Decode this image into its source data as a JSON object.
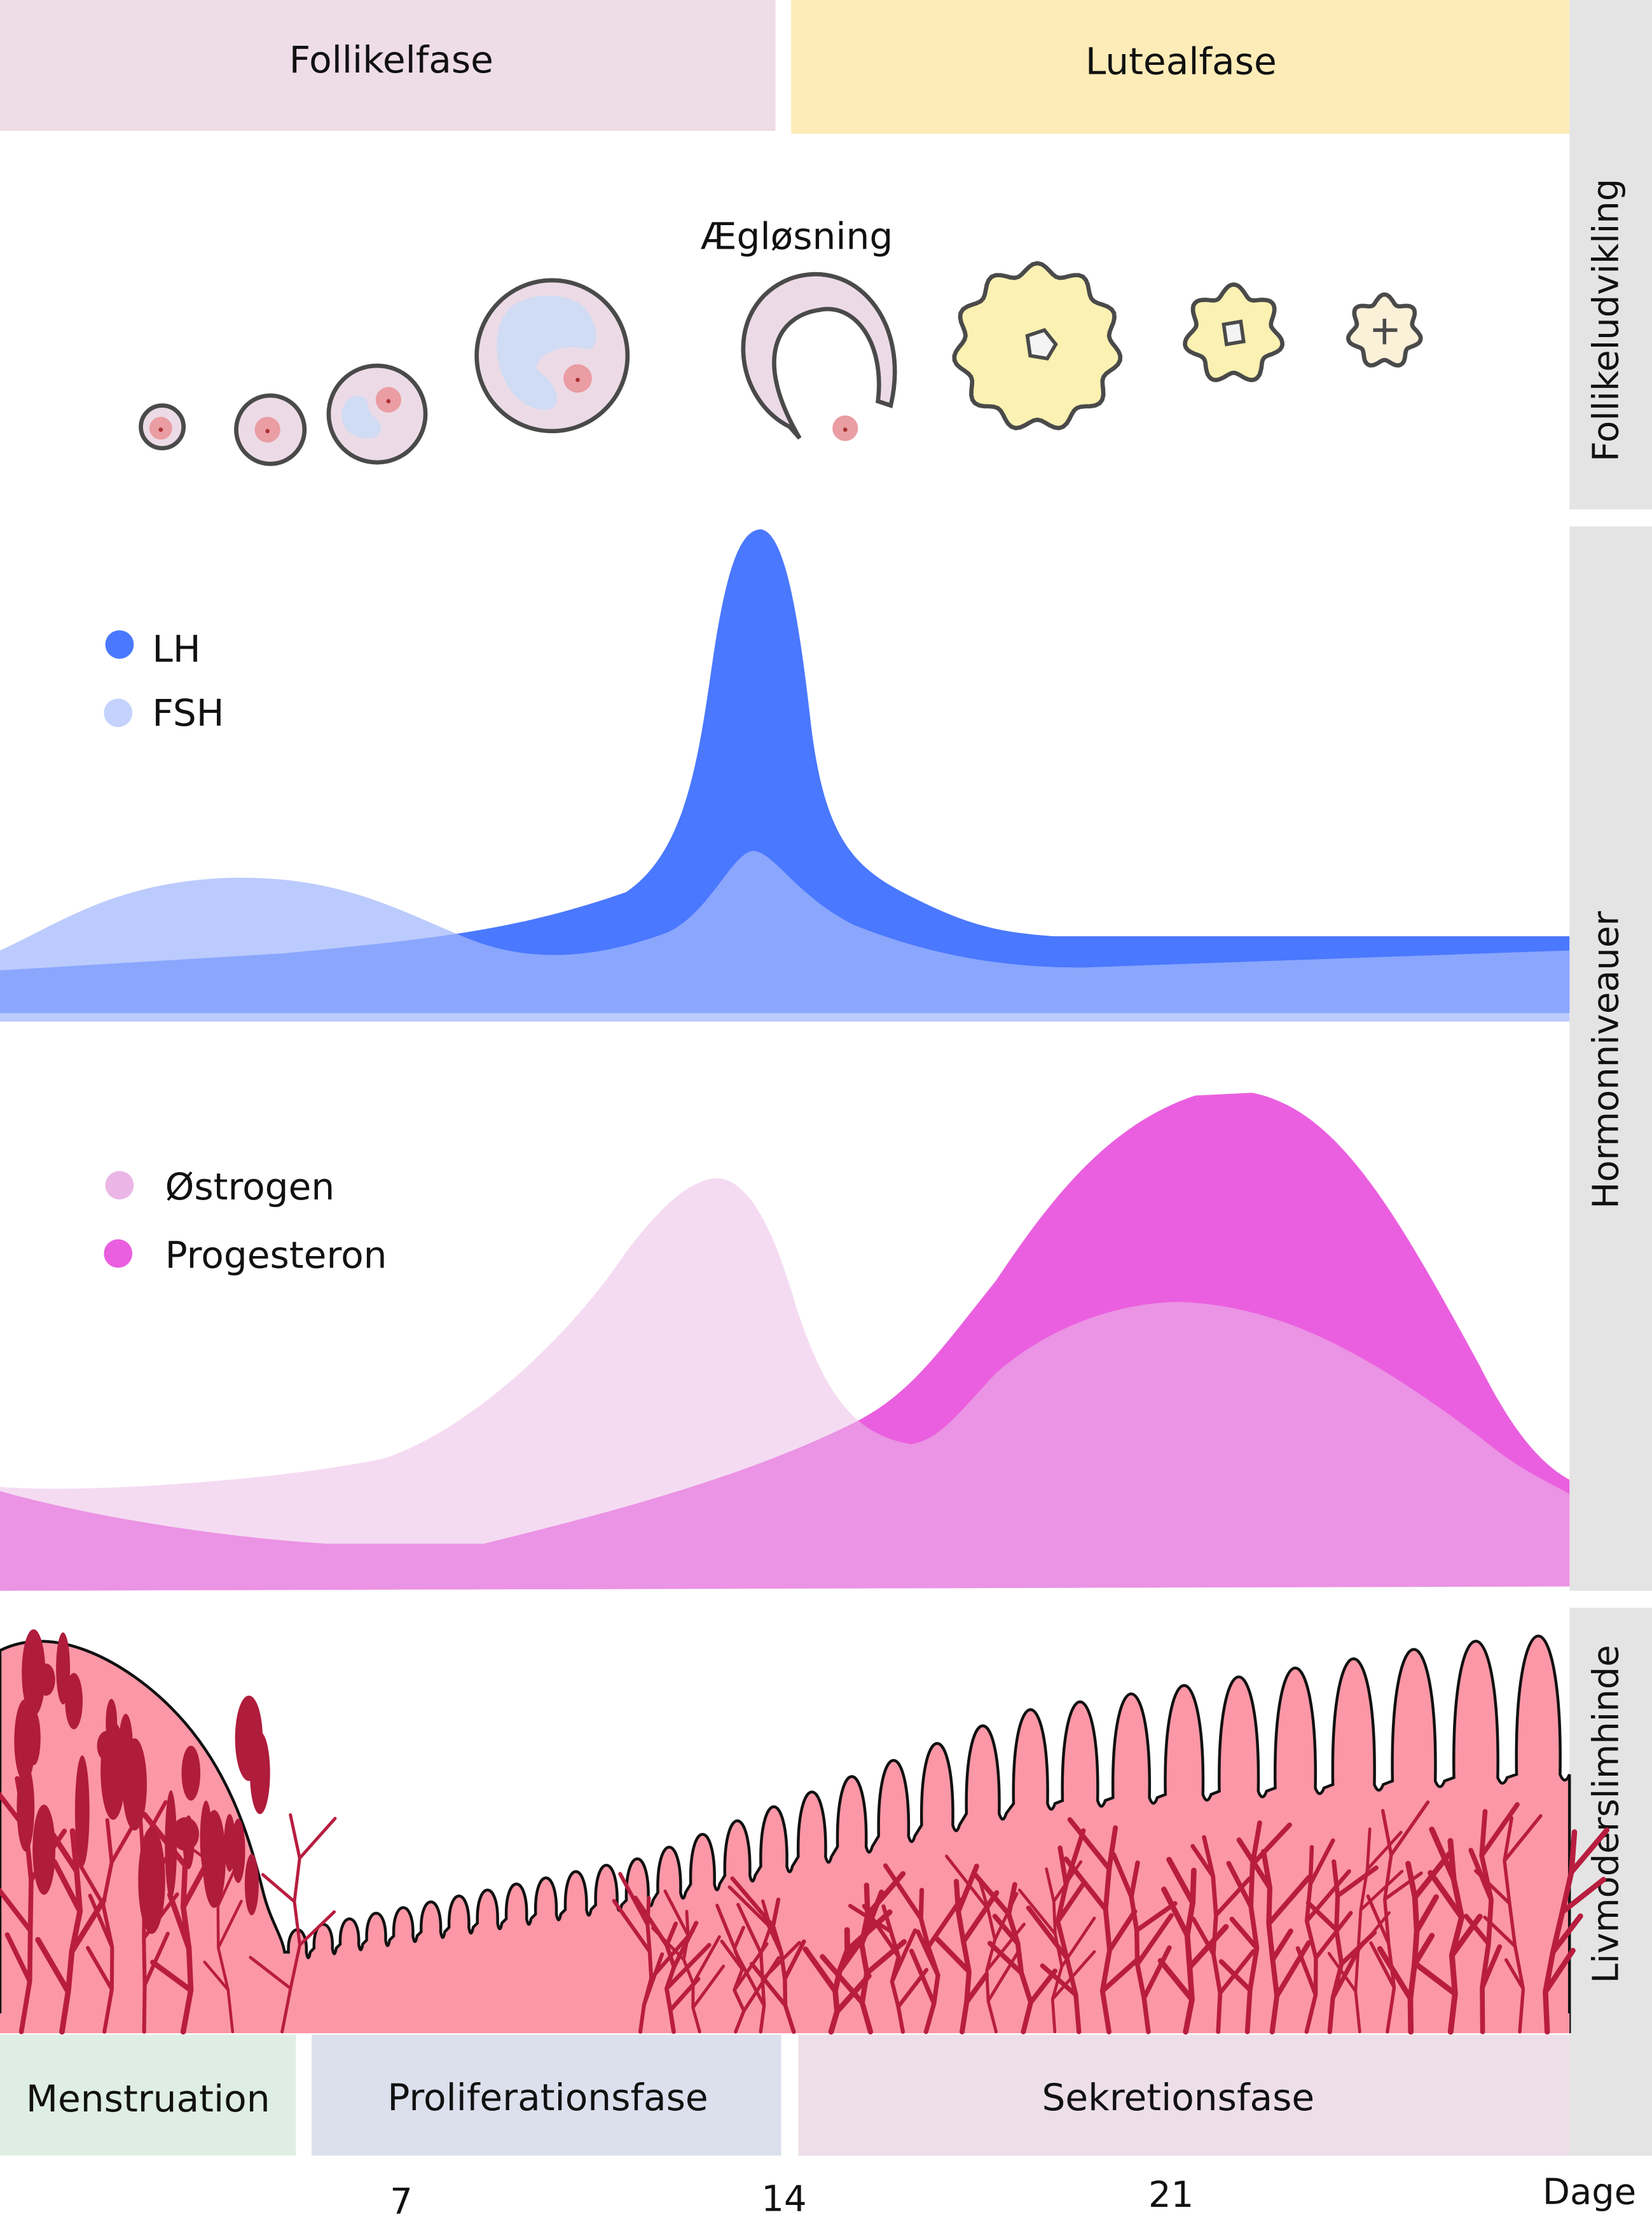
{
  "phases_top": {
    "follicular": "Follikelfase",
    "luteal": "Lutealfase"
  },
  "side_labels": {
    "follicles": "Follikeludvikling",
    "hormones": "Hormonniveauer",
    "endometrium": "Livmoderslimhinde"
  },
  "ovulation_label": "Ægløsning",
  "legend_gonadotropins": [
    {
      "label": "LH",
      "color": "#4a78fe"
    },
    {
      "label": "FSH",
      "color": "#c4d2fd"
    }
  ],
  "legend_steroids": [
    {
      "label": "Østrogen",
      "color": "#eab6e6"
    },
    {
      "label": "Progesteron",
      "color": "#ea5fdf"
    }
  ],
  "phases_bottom": {
    "menstruation": "Menstruation",
    "proliferative": "Proliferationsfase",
    "secretory": "Sekretionsfase"
  },
  "days": {
    "d7": "7",
    "d14": "14",
    "d21": "21",
    "unit": "Dage"
  },
  "colors": {
    "follicular_band": "#eedde6",
    "luteal_band": "#fdecb8",
    "side_bar": "#e4e4e4",
    "endometrium": "#fb97a6",
    "vessels": "#b81d3f",
    "menstruation_band": "#dfeee4",
    "proliferative_band": "#dcdfec",
    "secretory_band": "#eddfe7"
  }
}
